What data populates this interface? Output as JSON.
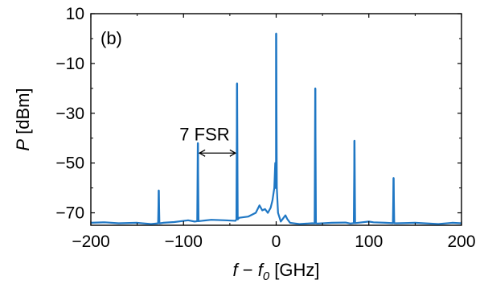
{
  "chart_data": {
    "type": "line",
    "panel_label": "(b)",
    "xlabel": {
      "italic_main": "f",
      "op": " − ",
      "italic_sub_base": "f",
      "sub": "0",
      "unit": " [GHz]"
    },
    "ylabel": {
      "italic": "P",
      "unit": " [dBm]"
    },
    "xlim": [
      -200,
      200
    ],
    "ylim": [
      -75,
      10
    ],
    "xticks": [
      -200,
      -100,
      0,
      100,
      200
    ],
    "yticks": [
      10,
      -10,
      -30,
      -50,
      -70
    ],
    "xtick_labels": [
      "−200",
      "−100",
      "0",
      "100",
      "200"
    ],
    "ytick_labels": [
      "10",
      "−10",
      "−30",
      "−50",
      "−70"
    ],
    "grid": false,
    "series": [
      {
        "color": "#1f77c4",
        "baseline": [
          [
            -200,
            -74
          ],
          [
            -185,
            -73.8
          ],
          [
            -170,
            -74.2
          ],
          [
            -150,
            -74
          ],
          [
            -135,
            -74.5
          ],
          [
            -126,
            -74.2
          ],
          [
            -122,
            -74
          ],
          [
            -110,
            -73.7
          ],
          [
            -95,
            -73
          ],
          [
            -88,
            -73.5
          ],
          [
            -80,
            -73.2
          ],
          [
            -70,
            -72.8
          ],
          [
            -55,
            -73
          ],
          [
            -44,
            -73.2
          ],
          [
            -40,
            -72
          ],
          [
            -30,
            -71.5
          ],
          [
            -22,
            -70
          ],
          [
            -18,
            -67
          ],
          [
            -15,
            -69
          ],
          [
            -12,
            -68.5
          ],
          [
            -9,
            -70
          ],
          [
            -6,
            -68
          ],
          [
            -4,
            -65
          ],
          [
            -2,
            -60
          ],
          [
            -1,
            -50
          ],
          [
            0,
            -60
          ],
          [
            2,
            -70
          ],
          [
            5,
            -73.5
          ],
          [
            8,
            -72
          ],
          [
            10,
            -71
          ],
          [
            12,
            -72.5
          ],
          [
            15,
            -74
          ],
          [
            25,
            -74.5
          ],
          [
            39,
            -74.2
          ],
          [
            45,
            -74.3
          ],
          [
            60,
            -74
          ],
          [
            75,
            -73.9
          ],
          [
            80,
            -74.3
          ],
          [
            88,
            -74
          ],
          [
            100,
            -73.5
          ],
          [
            105,
            -73.8
          ],
          [
            118,
            -74
          ],
          [
            130,
            -74.2
          ],
          [
            150,
            -74
          ],
          [
            175,
            -74.5
          ],
          [
            190,
            -74
          ],
          [
            200,
            -74.2
          ]
        ],
        "peaks": [
          {
            "x": -126.7,
            "y": -61
          },
          {
            "x": -84.5,
            "y": -42
          },
          {
            "x": -42.2,
            "y": -18
          },
          {
            "x": 0,
            "y": 2
          },
          {
            "x": 42.2,
            "y": -20
          },
          {
            "x": 84.5,
            "y": -41
          },
          {
            "x": 126.7,
            "y": -56
          }
        ]
      }
    ],
    "annotations": [
      {
        "text": "7 FSR",
        "arrow_from": [
          -84.5,
          -46
        ],
        "arrow_to": [
          -42.2,
          -46
        ]
      }
    ]
  }
}
